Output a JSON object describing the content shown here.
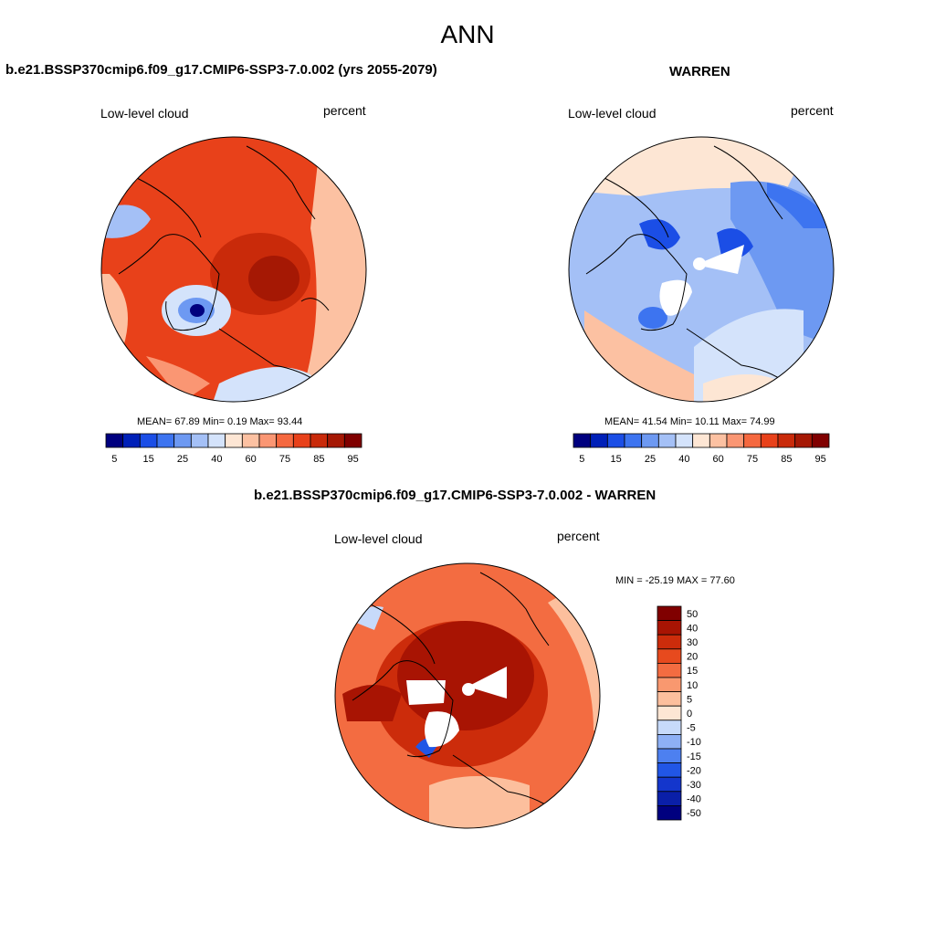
{
  "figure_title": "ANN",
  "panels": {
    "test": {
      "title": "b.e21.BSSP370cmip6.f09_g17.CMIP6-SSP3-7.0.002 (yrs 2055-2079)",
      "variable": "Low-level cloud",
      "units": "percent",
      "stats": "MEAN=  67.89  Min=   0.19  Max=  93.44"
    },
    "obs": {
      "title": "WARREN",
      "variable": "Low-level cloud",
      "units": "percent",
      "stats": "MEAN=  41.54  Min=  10.11  Max=  74.99"
    },
    "diff": {
      "title": "b.e21.BSSP370cmip6.f09_g17.CMIP6-SSP3-7.0.002 - WARREN",
      "variable": "Low-level cloud",
      "units": "percent",
      "stats": "MIN = -25.19 MAX =  77.60"
    }
  },
  "colorbars": {
    "absolute": {
      "colors": [
        "#00007f",
        "#0020b8",
        "#1b4ee6",
        "#3d74f0",
        "#6d99f2",
        "#a4c0f6",
        "#d4e3fb",
        "#fde6d4",
        "#fcc1a2",
        "#fa9673",
        "#f5683f",
        "#e8411a",
        "#c92a0a",
        "#a51804",
        "#800000"
      ],
      "tick_labels": [
        "5",
        "15",
        "25",
        "40",
        "60",
        "75",
        "85",
        "95"
      ]
    },
    "difference": {
      "colors": [
        "#00007f",
        "#0a1fa8",
        "#1436cc",
        "#2156e6",
        "#4d80f0",
        "#8eb0f5",
        "#c7dafa",
        "#fde6d4",
        "#fcbf9d",
        "#f9986f",
        "#f36c41",
        "#e74a1e",
        "#cc2c0b",
        "#a81403",
        "#800000"
      ],
      "tick_labels": [
        "50",
        "40",
        "30",
        "20",
        "15",
        "10",
        "5",
        "0",
        "-5",
        "-10",
        "-15",
        "-20",
        "-30",
        "-40",
        "-50"
      ]
    }
  },
  "icons": [
    "polar-map-test",
    "polar-map-obs",
    "polar-map-difference"
  ]
}
